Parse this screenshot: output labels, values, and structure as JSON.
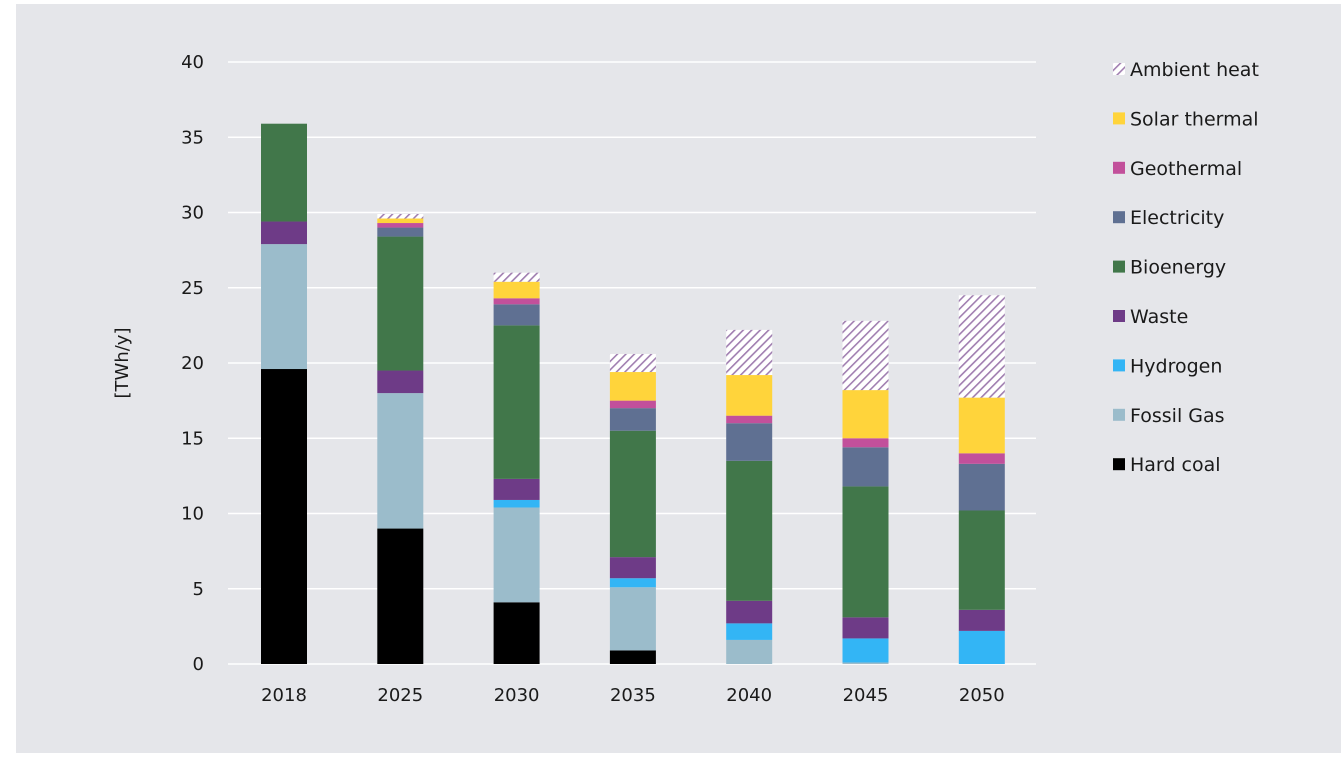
{
  "chart_data": {
    "type": "bar",
    "stacked": true,
    "title": "",
    "xlabel": "",
    "ylabel": "[TWh/y]",
    "ylim": [
      0,
      40
    ],
    "yticks": [
      "0",
      "5",
      "10",
      "15",
      "20",
      "25",
      "30",
      "35",
      "40"
    ],
    "grid": true,
    "legend_position": "right",
    "categories": [
      "2018",
      "2025",
      "2030",
      "2035",
      "2040",
      "2045",
      "2050"
    ],
    "series": [
      {
        "name": "Hard coal",
        "color": "#000000",
        "values": [
          19.6,
          9.0,
          4.1,
          0.9,
          0,
          0,
          0
        ]
      },
      {
        "name": "Fossil Gas",
        "color": "#9bbccb",
        "values": [
          8.3,
          9.0,
          6.3,
          4.2,
          1.6,
          0.1,
          0
        ]
      },
      {
        "name": "Hydrogen",
        "color": "#33b5f5",
        "values": [
          0,
          0,
          0.5,
          0.6,
          1.1,
          1.6,
          2.2
        ]
      },
      {
        "name": "Waste",
        "color": "#6e3b87",
        "values": [
          1.5,
          1.5,
          1.4,
          1.4,
          1.5,
          1.4,
          1.4
        ]
      },
      {
        "name": "Bioenergy",
        "color": "#41774a",
        "values": [
          6.5,
          8.9,
          10.2,
          8.4,
          9.3,
          8.7,
          6.6
        ]
      },
      {
        "name": "Electricity",
        "color": "#5f7092",
        "values": [
          0,
          0.6,
          1.4,
          1.5,
          2.5,
          2.6,
          3.1
        ]
      },
      {
        "name": "Geothermal",
        "color": "#c2509b",
        "values": [
          0,
          0.3,
          0.4,
          0.5,
          0.5,
          0.6,
          0.7
        ]
      },
      {
        "name": "Solar thermal",
        "color": "#ffd43b",
        "values": [
          0,
          0.3,
          1.1,
          1.9,
          2.7,
          3.2,
          3.7
        ]
      },
      {
        "name": "Ambient heat",
        "color": "#a07eb0",
        "pattern": "hatched",
        "values": [
          0,
          0.3,
          0.6,
          1.2,
          3.0,
          4.6,
          6.8
        ]
      }
    ],
    "legend_order": [
      "Ambient heat",
      "Solar thermal",
      "Geothermal",
      "Electricity",
      "Bioenergy",
      "Waste",
      "Hydrogen",
      "Fossil Gas",
      "Hard coal"
    ]
  }
}
